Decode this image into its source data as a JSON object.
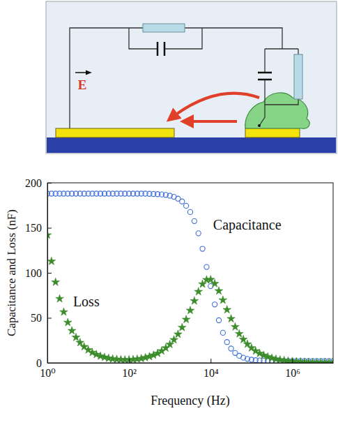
{
  "diagram": {
    "field_label": "E"
  },
  "chart_data": {
    "type": "scatter",
    "x_label": "Frequency (Hz)",
    "y_label": "Capacitance and Loss (nF)",
    "x": [
      1,
      1.259,
      1.585,
      1.995,
      2.512,
      3.162,
      3.981,
      5.012,
      6.31,
      7.943,
      10,
      12.59,
      15.85,
      19.95,
      25.12,
      31.62,
      39.81,
      50.12,
      63.1,
      79.43,
      100,
      125.9,
      158.5,
      199.5,
      251.2,
      316.2,
      398.1,
      501.2,
      631,
      794.3,
      1000,
      1259,
      1585,
      1995,
      2512,
      3162,
      3981,
      5012,
      6310,
      7943,
      10000,
      12590,
      15850,
      19950,
      25120,
      31620,
      39810,
      50120,
      63100,
      79430,
      100000,
      125900,
      158500,
      199500,
      251200,
      316200,
      398100,
      501200,
      631000,
      794300,
      1000000,
      1259000,
      1585000,
      1995000,
      2512000,
      3162000,
      3981000,
      5012000,
      6310000,
      7943000,
      10000000
    ],
    "series": [
      {
        "name": "Capacitance",
        "color": "#3f6fd8",
        "marker": "circle",
        "values": [
          188,
          188,
          188,
          188,
          188,
          188,
          188,
          188,
          188,
          188,
          188,
          188,
          188,
          188,
          188,
          188,
          188,
          188,
          188,
          188,
          188,
          188,
          188,
          188,
          188,
          187.8,
          187.6,
          187.4,
          187.1,
          186.6,
          185.7,
          184.4,
          182.4,
          179.3,
          174.5,
          167.5,
          157.5,
          143.9,
          126.7,
          106.5,
          85.2,
          64.9,
          47.3,
          33.4,
          23.1,
          15.9,
          11.0,
          7.8,
          5.7,
          4.4,
          3.5,
          2.9,
          2.6,
          2.4,
          2.2,
          2.2,
          2.1,
          2.1,
          2.0,
          2.0,
          2.0,
          2.0,
          2.0,
          2.0,
          2.0,
          2.0,
          2.0,
          2.0,
          2.0,
          2.0,
          2.0
        ]
      },
      {
        "name": "Loss",
        "color": "#3c8c2c",
        "marker": "star",
        "values": [
          142,
          112.8,
          89.6,
          71.2,
          56.5,
          44.9,
          35.7,
          28.3,
          22.5,
          17.9,
          14.4,
          11.5,
          9.3,
          7.5,
          6.2,
          5.1,
          4.4,
          3.9,
          3.6,
          3.4,
          3.5,
          3.7,
          4.2,
          4.8,
          5.8,
          7.0,
          8.6,
          10.6,
          13.2,
          16.5,
          20.5,
          25.6,
          31.8,
          39.3,
          48.2,
          58.2,
          68.8,
          79.1,
          87.5,
          92.3,
          92.5,
          88.0,
          79.9,
          69.7,
          59.0,
          49.0,
          40.0,
          32.3,
          26.0,
          20.8,
          16.6,
          13.2,
          10.5,
          8.4,
          6.7,
          5.3,
          4.2,
          3.3,
          2.7,
          2.1,
          1.7,
          1.3,
          1.1,
          0.8,
          0.7,
          0.5,
          0.4,
          0.3,
          0.3,
          0.2,
          0.2
        ]
      }
    ],
    "xlim": [
      1,
      10000000
    ],
    "ylim": [
      0,
      200
    ],
    "xticks": [
      {
        "value": 1,
        "label": "10⁰"
      },
      {
        "value": 100,
        "label": "10²"
      },
      {
        "value": 10000,
        "label": "10⁴"
      },
      {
        "value": 1000000,
        "label": "10⁶"
      }
    ],
    "yticks": [
      0,
      50,
      100,
      150,
      200
    ],
    "log": "x",
    "grid": false
  }
}
